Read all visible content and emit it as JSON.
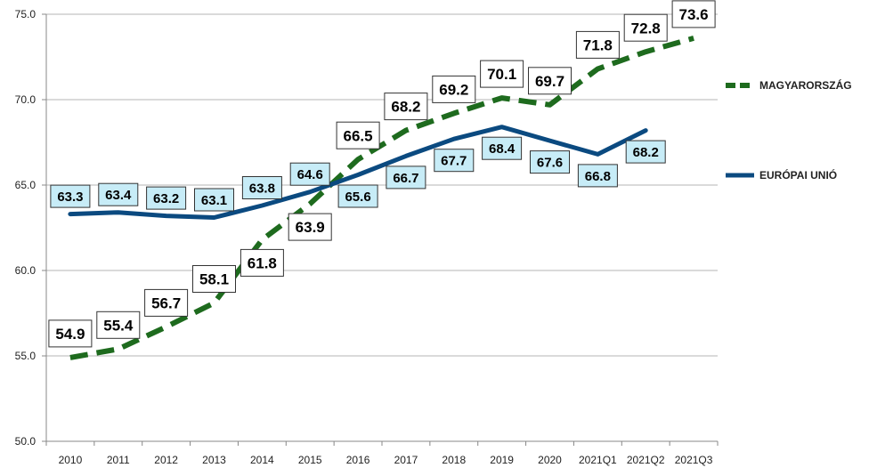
{
  "chart_data": {
    "type": "line",
    "categories": [
      "2010",
      "2011",
      "2012",
      "2013",
      "2014",
      "2015",
      "2016",
      "2017",
      "2018",
      "2019",
      "2020",
      "2021Q1",
      "2021Q2",
      "2021Q3"
    ],
    "ylim": [
      50,
      75
    ],
    "yticks": [
      "50.0",
      "55.0",
      "60.0",
      "65.0",
      "70.0",
      "75.0"
    ],
    "grid": true,
    "legend_position": "right",
    "series": [
      {
        "name": "MAGYARORSZÁG",
        "color": "#1e6b1e",
        "style": "dashed",
        "values": [
          54.9,
          55.4,
          56.7,
          58.1,
          61.8,
          63.9,
          66.5,
          68.2,
          69.2,
          70.1,
          69.7,
          71.8,
          72.8,
          73.6
        ],
        "labels": [
          "54.9",
          "55.4",
          "56.7",
          "58.1",
          "61.8",
          "63.9",
          "66.5",
          "68.2",
          "69.2",
          "70.1",
          "69.7",
          "71.8",
          "72.8",
          "73.6"
        ],
        "label_bg": "#ffffff"
      },
      {
        "name": "EURÓPAI UNIÓ",
        "color": "#0b4a80",
        "style": "solid",
        "values": [
          63.3,
          63.4,
          63.2,
          63.1,
          63.8,
          64.6,
          65.6,
          66.7,
          67.7,
          68.4,
          67.6,
          66.8,
          68.2,
          null
        ],
        "labels": [
          "63.3",
          "63.4",
          "63.2",
          "63.1",
          "63.8",
          "64.6",
          "65.6",
          "66.7",
          "67.7",
          "68.4",
          "67.6",
          "66.8",
          "68.2",
          ""
        ],
        "label_bg": "#c7ecf7"
      }
    ]
  }
}
